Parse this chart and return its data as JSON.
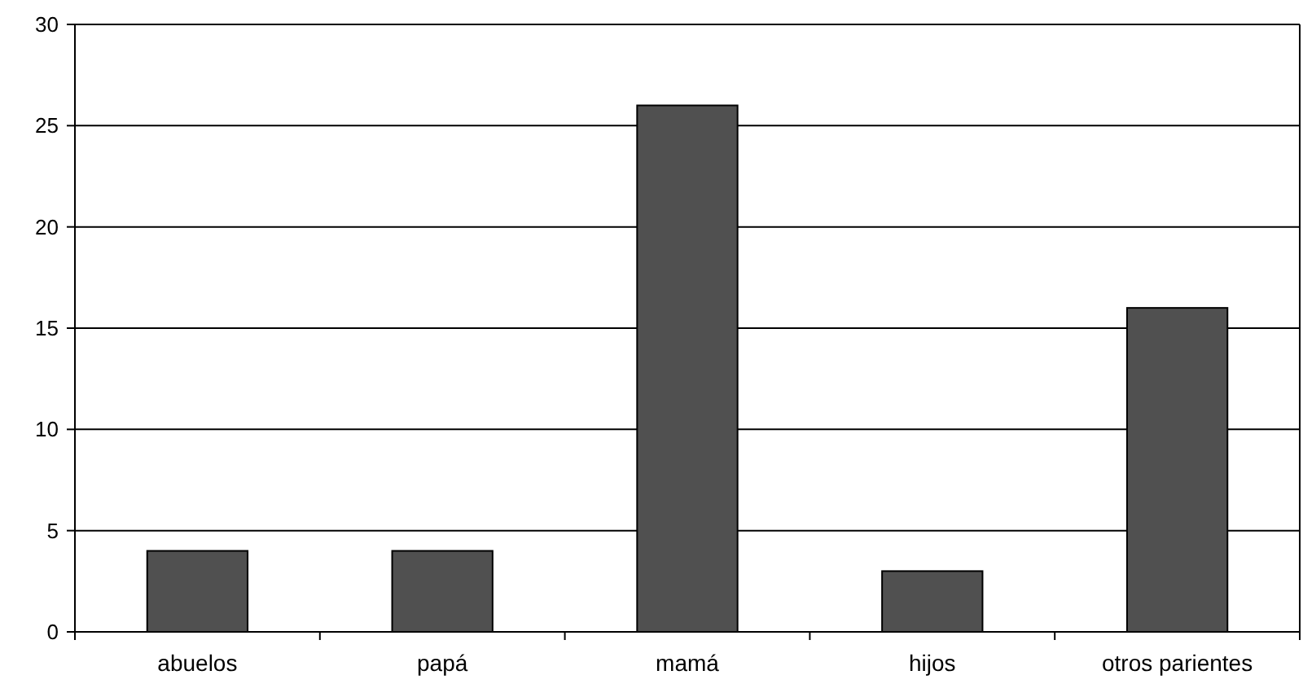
{
  "chart_data": {
    "type": "bar",
    "categories": [
      "abuelos",
      "papá",
      "mamá",
      "hijos",
      "otros parientes"
    ],
    "values": [
      4,
      4,
      26,
      3,
      16
    ],
    "color": "#505050",
    "ylim": [
      0,
      30
    ],
    "yticks": [
      0,
      5,
      10,
      15,
      20,
      25,
      30
    ],
    "grid": "y"
  }
}
